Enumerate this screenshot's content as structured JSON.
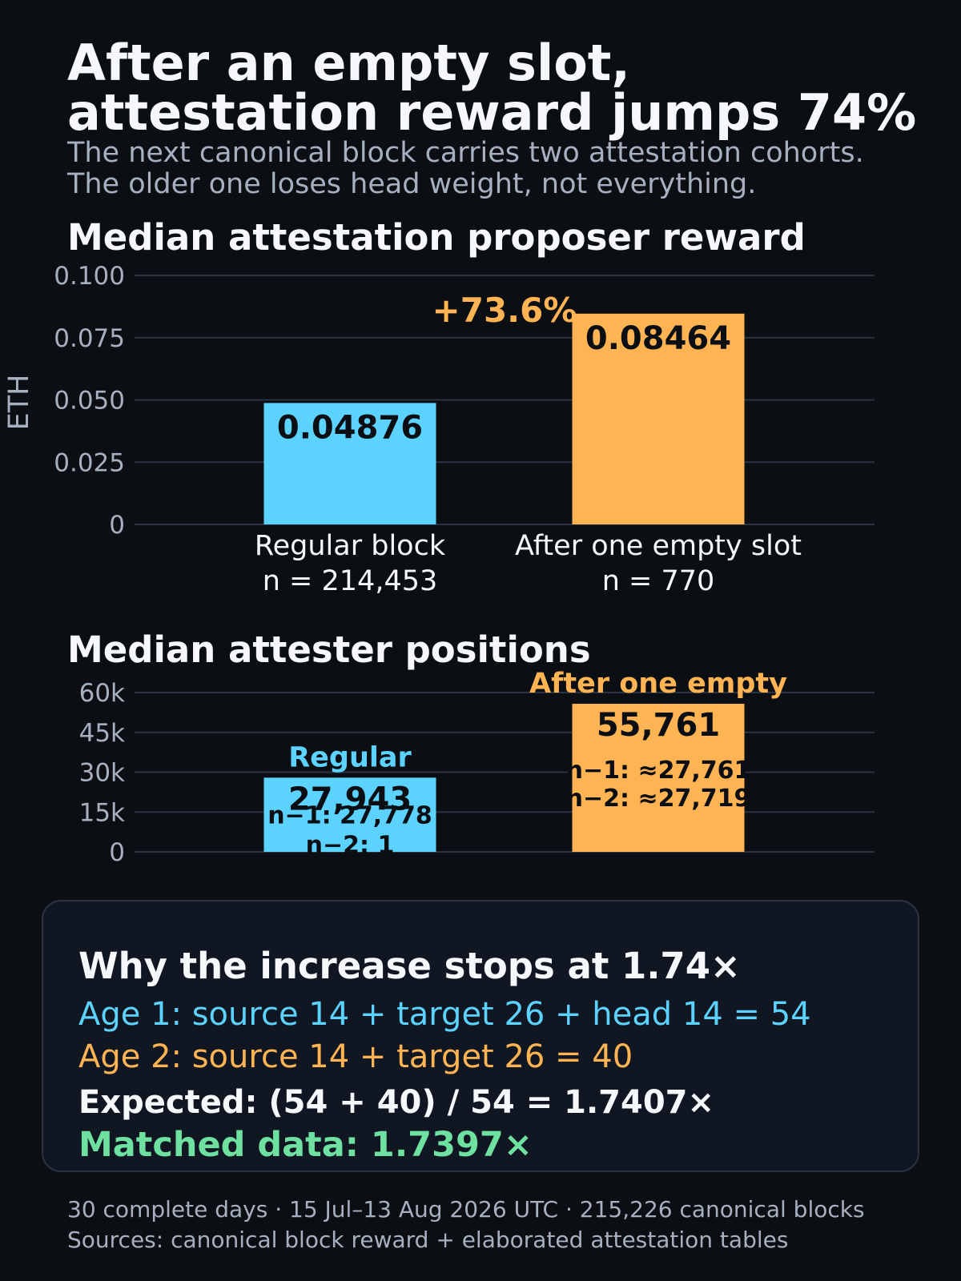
{
  "header": {
    "title_line1": "After an empty slot,",
    "title_line2": "attestation reward jumps 74%",
    "subtitle_line1": "The next canonical block carries two attestation cohorts.",
    "subtitle_line2": "The older one loses head weight, not everything."
  },
  "colors": {
    "regular": "#5cd3ff",
    "after_empty": "#ffb454",
    "background": "#0b0e13",
    "grid": "#2a3341",
    "axis_text": "#a6b0c0",
    "matched": "#6ee0a0"
  },
  "chart_data": [
    {
      "type": "bar",
      "title": "Median attestation proposer reward",
      "ylabel": "ETH",
      "ylim": [
        0,
        0.1
      ],
      "yticks": [
        0,
        0.025,
        0.05,
        0.075,
        0.1
      ],
      "ytick_labels": [
        "0",
        "0.025",
        "0.050",
        "0.075",
        "0.100"
      ],
      "grid": true,
      "categories": [
        "Regular block",
        "After one empty slot"
      ],
      "category_sublabels": [
        "n = 214,453",
        "n = 770"
      ],
      "values": [
        0.04876,
        0.08464
      ],
      "value_labels": [
        "0.04876",
        "0.08464"
      ],
      "annotation": "+73.6%"
    },
    {
      "type": "bar",
      "title": "Median attester positions",
      "ylim": [
        0,
        60000
      ],
      "yticks": [
        0,
        15000,
        30000,
        45000,
        60000
      ],
      "ytick_labels": [
        "0",
        "15k",
        "30k",
        "45k",
        "60k"
      ],
      "grid": true,
      "categories": [
        "Regular",
        "After one empty"
      ],
      "values": [
        27943,
        55761
      ],
      "value_labels": [
        "27,943",
        "55,761"
      ],
      "breakdown_labels": [
        [
          "n−1: 27,778",
          "n−2: 1"
        ],
        [
          "n−1: ≈27,761",
          "n−2: ≈27,719"
        ]
      ]
    }
  ],
  "panel": {
    "heading": "Why the increase stops at 1.74×",
    "age1": "Age 1: source 14 + target 26 + head 14 = 54",
    "age2": "Age 2: source 14 + target 26 = 40",
    "expected": "Expected: (54 + 40) / 54 = 1.7407×",
    "matched": "Matched data: 1.7397×"
  },
  "footer": {
    "line1": "30 complete days · 15 Jul–13 Aug 2026 UTC · 215,226 canonical blocks",
    "line2": "Sources: canonical block reward + elaborated attestation tables"
  }
}
